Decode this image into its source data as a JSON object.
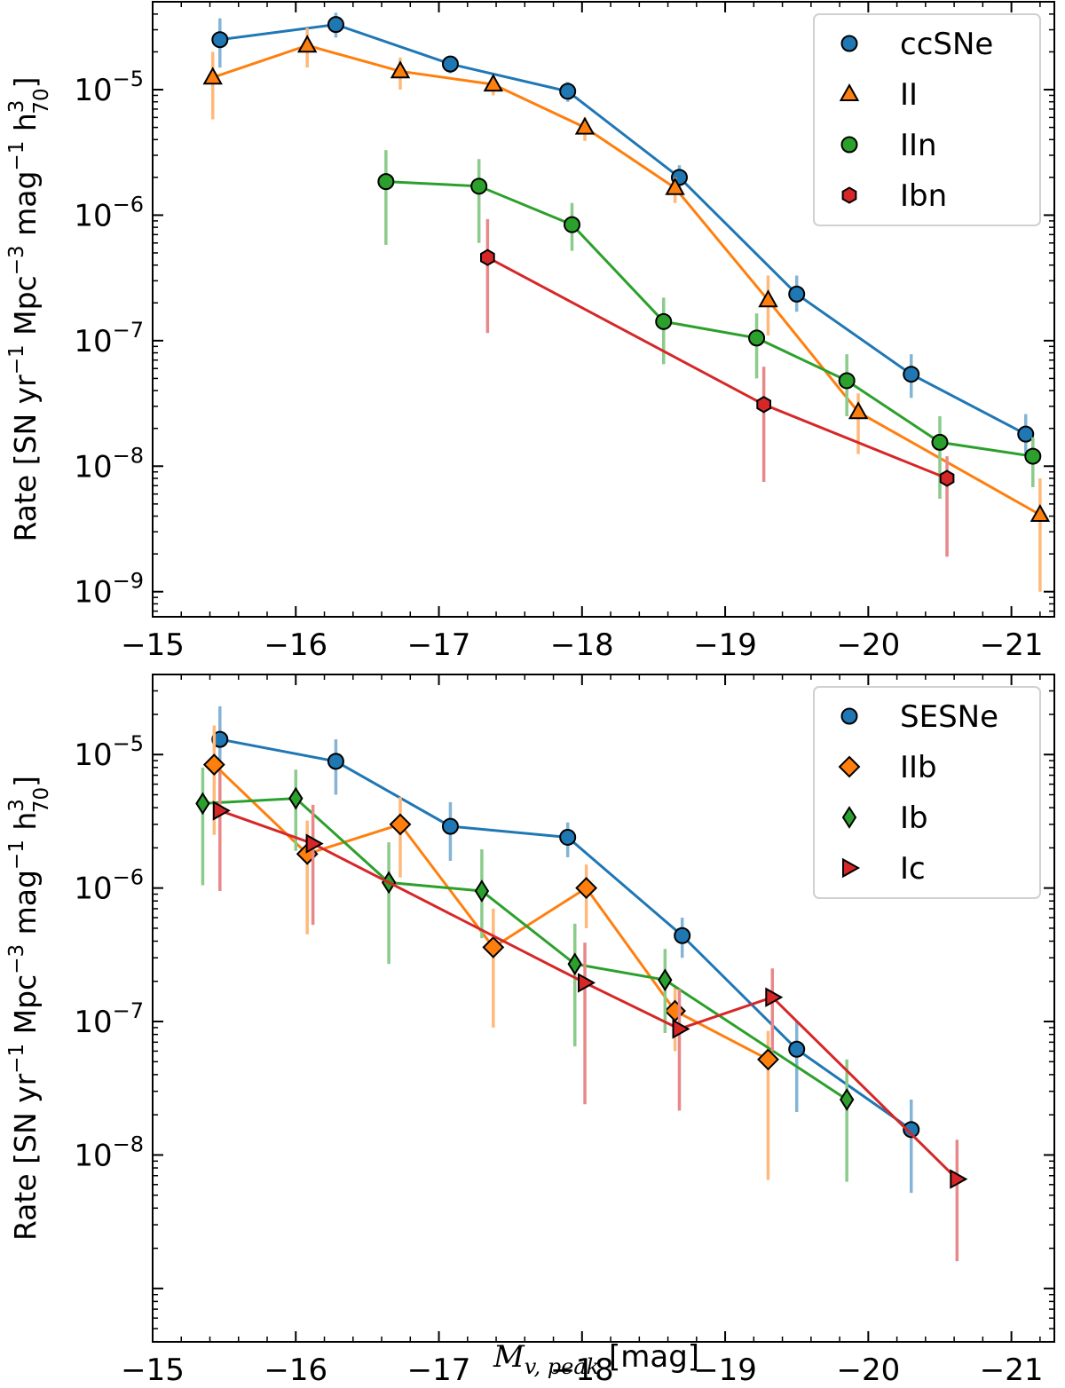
{
  "figure": {
    "xlabel_main": "M",
    "xlabel_sub": "v, peak",
    "xlabel_unit": " [mag]"
  },
  "chart_data": [
    {
      "type": "line",
      "panel": "top",
      "scale": "log-y",
      "x_direction": "decreasing",
      "xlim": [
        -15,
        -21.3
      ],
      "ylim_log10": [
        -9.2,
        -4.3
      ],
      "xticks": [
        -15,
        -16,
        -17,
        -18,
        -19,
        -20,
        -21
      ],
      "xtick_labels": [
        "−15",
        "−16",
        "−17",
        "−18",
        "−19",
        "−20",
        "−21"
      ],
      "yticks": [
        -9,
        -8,
        -7,
        -6,
        -5
      ],
      "ylabel_parts": [
        "Rate [SN yr",
        "−1",
        " Mpc",
        "−3",
        " mag",
        "−1",
        " h",
        "3",
        "70",
        "]"
      ],
      "legend_position": "top-right",
      "series": [
        {
          "name": "ccSNe",
          "color": "#1f77b4",
          "marker": "circle",
          "x": [
            -15.47,
            -16.28,
            -17.08,
            -17.9,
            -18.68,
            -19.5,
            -20.3,
            -21.1
          ],
          "y": [
            2.5e-05,
            3.3e-05,
            1.6e-05,
            9.7e-06,
            2e-06,
            2.35e-07,
            5.4e-08,
            1.8e-08
          ],
          "err_lo": [
            1.5e-05,
            2.6e-05,
            1.35e-05,
            8e-06,
            1.6e-06,
            1.7e-07,
            3.5e-08,
            1.2e-08
          ],
          "err_hi": [
            3.7e-05,
            4.1e-05,
            1.85e-05,
            1.15e-05,
            2.5e-06,
            3.3e-07,
            7.8e-08,
            2.6e-08
          ]
        },
        {
          "name": "II",
          "color": "#ff7f0e",
          "marker": "triangle",
          "x": [
            -15.42,
            -16.08,
            -16.73,
            -17.38,
            -18.02,
            -18.65,
            -19.3,
            -19.93,
            -21.2
          ],
          "y": [
            1.25e-05,
            2.25e-05,
            1.4e-05,
            1.1e-05,
            5e-06,
            1.65e-06,
            2.1e-07,
            2.7e-08,
            4.1e-09
          ],
          "err_lo": [
            5.8e-06,
            1.5e-05,
            1e-05,
            9e-06,
            3.9e-06,
            1.25e-06,
            1.1e-07,
            1.25e-08,
            1e-09
          ],
          "err_hi": [
            2e-05,
            3.1e-05,
            1.8e-05,
            1.3e-05,
            6e-06,
            2e-06,
            3.3e-07,
            3.8e-08,
            8e-09
          ]
        },
        {
          "name": "IIn",
          "color": "#2ca02c",
          "marker": "circle",
          "x": [
            -16.63,
            -17.28,
            -17.93,
            -18.57,
            -19.22,
            -19.85,
            -20.5,
            -21.15
          ],
          "y": [
            1.85e-06,
            1.7e-06,
            8.4e-07,
            1.42e-07,
            1.05e-07,
            4.8e-08,
            1.55e-08,
            1.2e-08
          ],
          "err_lo": [
            5.8e-07,
            6e-07,
            5.2e-07,
            6.5e-08,
            5e-08,
            2.5e-08,
            5.5e-09,
            6.8e-09
          ],
          "err_hi": [
            3.3e-06,
            2.8e-06,
            1.25e-06,
            2.2e-07,
            1.65e-07,
            7.8e-08,
            2.5e-08,
            1.7e-08
          ]
        },
        {
          "name": "Ibn",
          "color": "#d62728",
          "marker": "hexagon",
          "x": [
            -17.34,
            -19.27,
            -20.55
          ],
          "y": [
            4.6e-07,
            3.1e-08,
            8e-09
          ],
          "err_lo": [
            1.15e-07,
            7.5e-09,
            1.9e-09
          ],
          "err_hi": [
            9.3e-07,
            6.2e-08,
            1.2e-08
          ]
        }
      ]
    },
    {
      "type": "line",
      "panel": "bottom",
      "scale": "log-y",
      "x_direction": "decreasing",
      "xlim": [
        -15,
        -21.3
      ],
      "ylim_log10": [
        -9.4,
        -4.4
      ],
      "xticks": [
        -15,
        -16,
        -17,
        -18,
        -19,
        -20,
        -21
      ],
      "xtick_labels": [
        "−15",
        "−16",
        "−17",
        "−18",
        "−19",
        "−20",
        "−21"
      ],
      "yticks": [
        -8,
        -7,
        -6,
        -5
      ],
      "ylabel_parts": [
        "Rate [SN yr",
        "−1",
        " Mpc",
        "−3",
        " mag",
        "−1",
        " h",
        "3",
        "70",
        "]"
      ],
      "legend_position": "top-right",
      "series": [
        {
          "name": "SESNe",
          "color": "#1f77b4",
          "marker": "circle",
          "x": [
            -15.47,
            -16.28,
            -17.08,
            -17.9,
            -18.7,
            -19.5,
            -20.3
          ],
          "y": [
            1.3e-05,
            8.9e-06,
            2.9e-06,
            2.4e-06,
            4.4e-07,
            6.2e-08,
            1.55e-08
          ],
          "err_lo": [
            7e-06,
            5e-06,
            1.6e-06,
            1.7e-06,
            3e-07,
            2.1e-08,
            5.2e-09
          ],
          "err_hi": [
            2.3e-05,
            1.3e-05,
            4.4e-06,
            3.1e-06,
            6e-07,
            1e-07,
            2.6e-08
          ]
        },
        {
          "name": "IIb",
          "color": "#ff7f0e",
          "marker": "diamond",
          "x": [
            -15.43,
            -16.08,
            -16.73,
            -17.38,
            -18.03,
            -18.65,
            -19.3
          ],
          "y": [
            8.4e-06,
            1.8e-06,
            3e-06,
            3.6e-07,
            1e-06,
            1.2e-07,
            5.2e-08
          ],
          "err_lo": [
            2.5e-06,
            4.5e-07,
            1.2e-06,
            9e-08,
            5e-07,
            6e-08,
            6.5e-09
          ],
          "err_hi": [
            1.65e-05,
            3.2e-06,
            4.8e-06,
            7e-07,
            1.5e-06,
            1.8e-07,
            8.5e-08
          ]
        },
        {
          "name": "Ib",
          "color": "#2ca02c",
          "marker": "thin_diamond",
          "x": [
            -15.35,
            -16.0,
            -16.65,
            -17.3,
            -17.95,
            -18.58,
            -19.85
          ],
          "y": [
            4.3e-06,
            4.7e-06,
            1.1e-06,
            9.5e-07,
            2.7e-07,
            2.05e-07,
            2.6e-08
          ],
          "err_lo": [
            1.05e-06,
            1.9e-06,
            2.7e-07,
            4.2e-07,
            6.5e-08,
            8.2e-08,
            6.3e-09
          ],
          "err_hi": [
            8e-06,
            7.7e-06,
            2.2e-06,
            1.95e-06,
            5.4e-07,
            3.5e-07,
            5.2e-08
          ]
        },
        {
          "name": "Ic",
          "color": "#d62728",
          "marker": "triangle-right",
          "x": [
            -15.47,
            -16.12,
            -18.02,
            -18.68,
            -19.33,
            -20.62
          ],
          "y": [
            3.8e-06,
            2.15e-06,
            1.95e-07,
            8.8e-08,
            1.52e-07,
            6.6e-09
          ],
          "err_lo": [
            9.5e-07,
            5.3e-07,
            2.4e-08,
            2.15e-08,
            6e-08,
            1.6e-09
          ],
          "err_hi": [
            7.4e-06,
            4.2e-06,
            3.9e-07,
            1.75e-07,
            2.5e-07,
            1.3e-08
          ]
        }
      ]
    }
  ]
}
